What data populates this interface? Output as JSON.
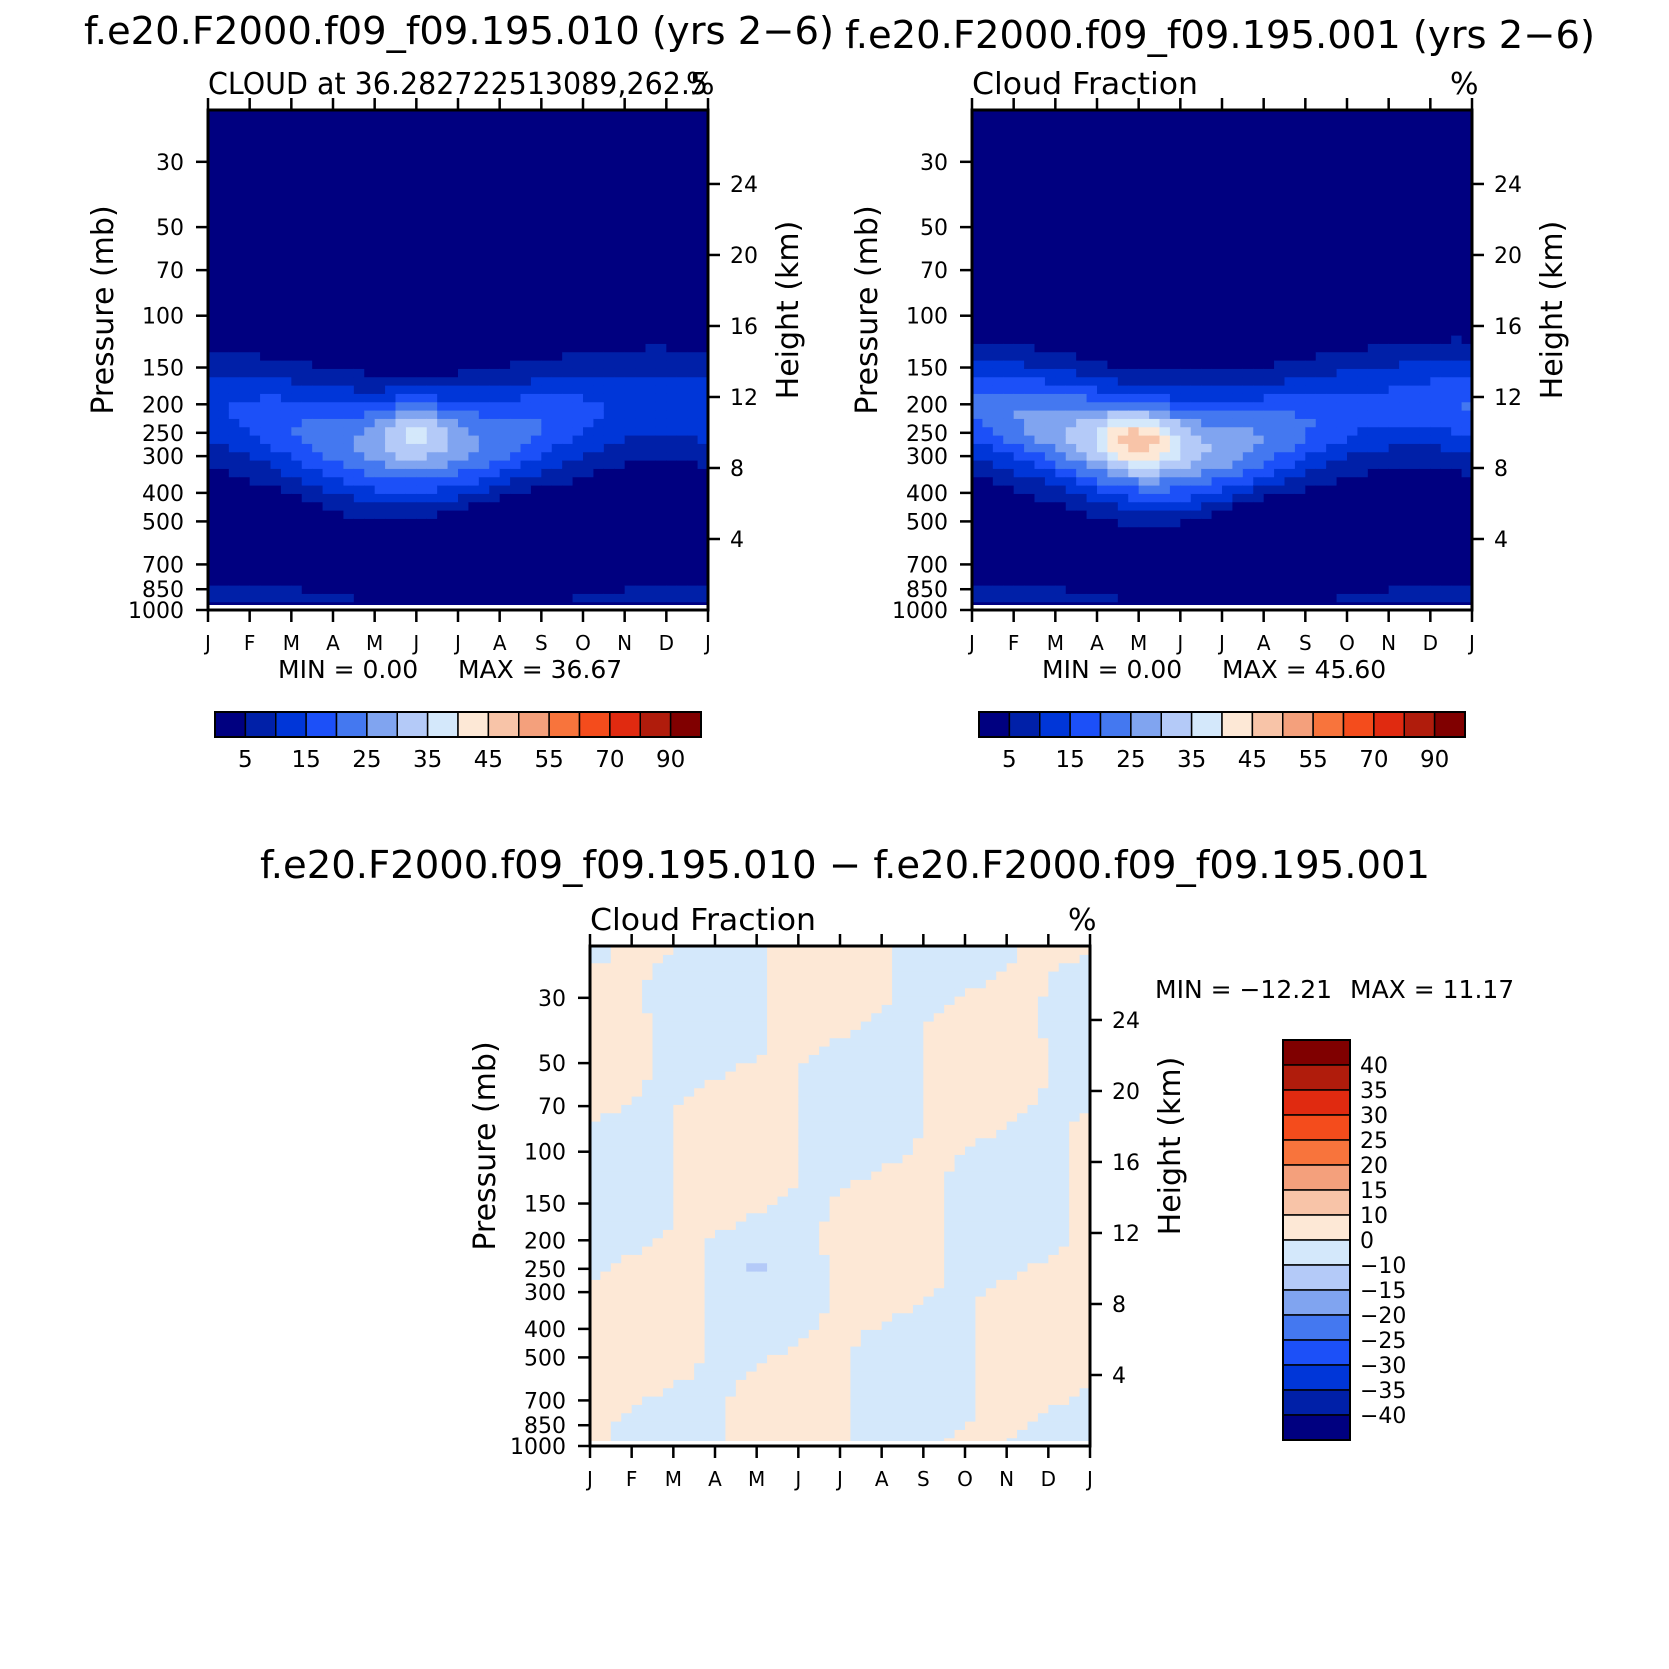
{
  "titles": {
    "left": "f.e20.F2000.f09_f09.195.010 (yrs 2−6)",
    "right": "f.e20.F2000.f09_f09.195.001 (yrs 2−6)",
    "diff": "f.e20.F2000.f09_f09.195.010 − f.e20.F2000.f09_f09.195.001"
  },
  "chart_data": [
    {
      "type": "heatmap",
      "id": "panel-010",
      "subtitle": "CLOUD at 36.282722513089,262.5",
      "units": "%",
      "ylabel": "Pressure (mb)",
      "ylabel_right": "Height (km)",
      "x_ticks": [
        "J",
        "F",
        "M",
        "A",
        "M",
        "J",
        "J",
        "A",
        "S",
        "O",
        "N",
        "D",
        "J"
      ],
      "y_ticks_pressure": [
        30,
        50,
        70,
        100,
        150,
        200,
        250,
        300,
        400,
        500,
        700,
        850,
        1000
      ],
      "y_ticks_height": [
        24,
        20,
        16,
        12,
        8,
        4
      ],
      "ylim": [
        1000,
        20
      ],
      "min_label": "MIN =    0.00",
      "max_label": "MAX =   36.67",
      "min": 0.0,
      "max": 36.67,
      "colorbar_labels": [
        "5",
        "15",
        "25",
        "35",
        "45",
        "55",
        "70",
        "90"
      ],
      "levels": [
        5,
        10,
        15,
        20,
        25,
        30,
        35,
        40,
        45,
        50,
        55,
        60,
        70,
        80,
        90
      ],
      "peak": {
        "month": 5.0,
        "pressure": 240
      },
      "cloud_band": {
        "base_mb": 500,
        "top_mb": 170
      }
    },
    {
      "type": "heatmap",
      "id": "panel-001",
      "subtitle": "Cloud Fraction",
      "units": "%",
      "ylabel": "Pressure (mb)",
      "ylabel_right": "Height (km)",
      "x_ticks": [
        "J",
        "F",
        "M",
        "A",
        "M",
        "J",
        "J",
        "A",
        "S",
        "O",
        "N",
        "D",
        "J"
      ],
      "y_ticks_pressure": [
        30,
        50,
        70,
        100,
        150,
        200,
        250,
        300,
        400,
        500,
        700,
        850,
        1000
      ],
      "y_ticks_height": [
        24,
        20,
        16,
        12,
        8,
        4
      ],
      "ylim": [
        1000,
        20
      ],
      "min_label": "MIN =    0.00",
      "max_label": "MAX =   45.60",
      "min": 0.0,
      "max": 45.6,
      "colorbar_labels": [
        "5",
        "15",
        "25",
        "35",
        "45",
        "55",
        "70",
        "90"
      ],
      "levels": [
        5,
        10,
        15,
        20,
        25,
        30,
        35,
        40,
        45,
        50,
        55,
        60,
        70,
        80,
        90
      ],
      "peak": {
        "month": 4.0,
        "pressure": 260
      },
      "cloud_band": {
        "base_mb": 500,
        "top_mb": 170
      }
    },
    {
      "type": "heatmap",
      "id": "panel-diff",
      "subtitle": "Cloud Fraction",
      "units": "%",
      "ylabel": "Pressure (mb)",
      "ylabel_right": "Height (km)",
      "x_ticks": [
        "J",
        "F",
        "M",
        "A",
        "M",
        "J",
        "J",
        "A",
        "S",
        "O",
        "N",
        "D",
        "J"
      ],
      "y_ticks_pressure": [
        30,
        50,
        70,
        100,
        150,
        200,
        250,
        300,
        400,
        500,
        700,
        850,
        1000
      ],
      "y_ticks_height": [
        24,
        20,
        16,
        12,
        8,
        4
      ],
      "ylim": [
        1000,
        20
      ],
      "min_label": "MIN = −12.21",
      "max_label": "MAX =   11.17",
      "min": -12.21,
      "max": 11.17,
      "colorbar_labels": [
        "40",
        "35",
        "30",
        "25",
        "20",
        "15",
        "10",
        "0",
        "−10",
        "−15",
        "−20",
        "−25",
        "−30",
        "−35",
        "−40"
      ],
      "levels": [
        -40,
        -35,
        -30,
        -25,
        -20,
        -15,
        -10,
        0,
        10,
        15,
        20,
        25,
        30,
        35,
        40
      ]
    }
  ],
  "colors": {
    "seq": [
      "#000080",
      "#0020a8",
      "#0036d8",
      "#1c50f8",
      "#4478f0",
      "#80a4f0",
      "#b4caf8",
      "#d4e8fb",
      "#fde8d6",
      "#f8c4a8",
      "#f4a07c",
      "#f8743c",
      "#f44c1c",
      "#e02a10",
      "#b01c0c",
      "#800000"
    ],
    "div": [
      "#000080",
      "#0020a8",
      "#0036d8",
      "#1c50f8",
      "#4478f0",
      "#80a4f0",
      "#b4caf8",
      "#d4e8fb",
      "#fde8d6",
      "#f8c4a8",
      "#f4a07c",
      "#f8743c",
      "#f44c1c",
      "#e02a10",
      "#b01c0c",
      "#800000"
    ]
  }
}
